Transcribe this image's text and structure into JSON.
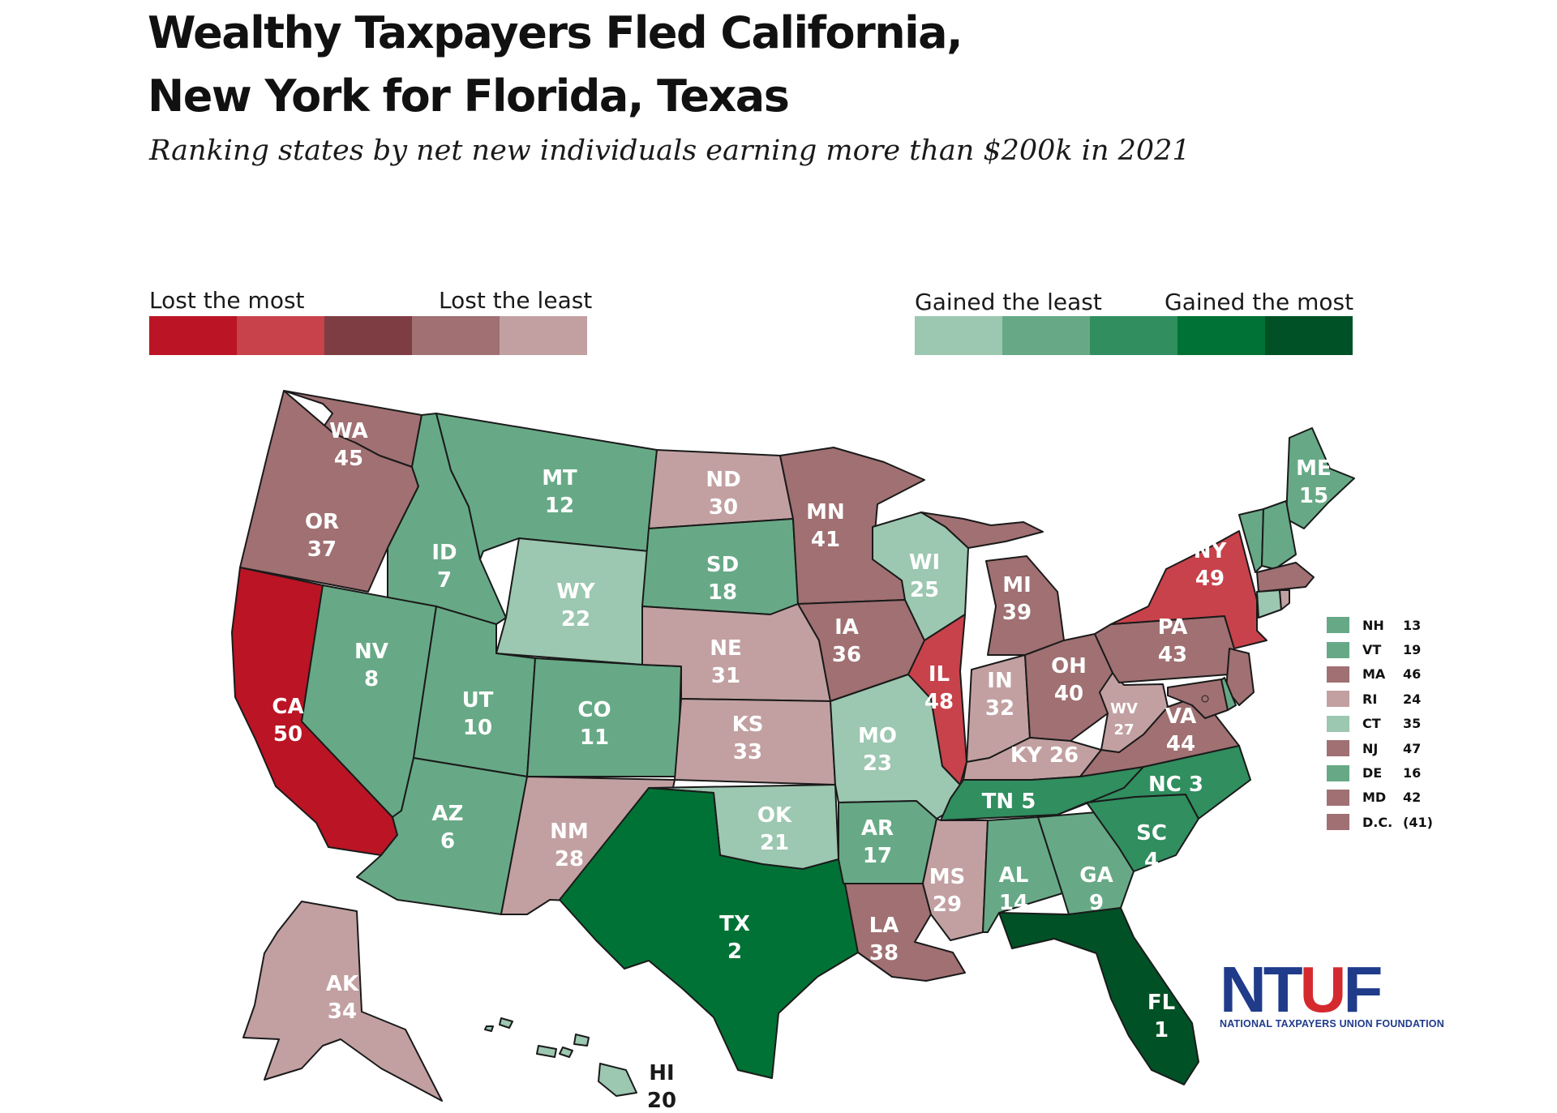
{
  "title_line1": "Wealthy Taxpayers Fled California,",
  "title_line2": "New York for Florida, Texas",
  "subtitle": "Ranking states by net new individuals earning more than $200k in 2021",
  "legend": {
    "lost_most": "Lost the most",
    "lost_least": "Lost the least",
    "gained_least": "Gained the least",
    "gained_most": "Gained the most",
    "lost_colors": [
      "#bb1424",
      "#c8424b",
      "#7e3d42",
      "#a07072",
      "#c2a0a1"
    ],
    "gained_colors": [
      "#9cc7b0",
      "#67a986",
      "#308e5f",
      "#017235",
      "#005126"
    ]
  },
  "states": [
    {
      "abbr": "WA",
      "rank": "45",
      "color": "#a07072"
    },
    {
      "abbr": "OR",
      "rank": "37",
      "color": "#a07072"
    },
    {
      "abbr": "CA",
      "rank": "50",
      "color": "#bb1424"
    },
    {
      "abbr": "ID",
      "rank": "7",
      "color": "#67a986"
    },
    {
      "abbr": "NV",
      "rank": "8",
      "color": "#67a986"
    },
    {
      "abbr": "MT",
      "rank": "12",
      "color": "#67a986"
    },
    {
      "abbr": "WY",
      "rank": "22",
      "color": "#9cc7b0"
    },
    {
      "abbr": "UT",
      "rank": "10",
      "color": "#67a986"
    },
    {
      "abbr": "CO",
      "rank": "11",
      "color": "#67a986"
    },
    {
      "abbr": "AZ",
      "rank": "6",
      "color": "#67a986"
    },
    {
      "abbr": "NM",
      "rank": "28",
      "color": "#c2a0a1"
    },
    {
      "abbr": "ND",
      "rank": "30",
      "color": "#c2a0a1"
    },
    {
      "abbr": "SD",
      "rank": "18",
      "color": "#67a986"
    },
    {
      "abbr": "NE",
      "rank": "31",
      "color": "#c2a0a1"
    },
    {
      "abbr": "KS",
      "rank": "33",
      "color": "#c2a0a1"
    },
    {
      "abbr": "OK",
      "rank": "21",
      "color": "#9cc7b0"
    },
    {
      "abbr": "TX",
      "rank": "2",
      "color": "#017235"
    },
    {
      "abbr": "MN",
      "rank": "41",
      "color": "#a07072"
    },
    {
      "abbr": "IA",
      "rank": "36",
      "color": "#a07072"
    },
    {
      "abbr": "MO",
      "rank": "23",
      "color": "#9cc7b0"
    },
    {
      "abbr": "AR",
      "rank": "17",
      "color": "#67a986"
    },
    {
      "abbr": "LA",
      "rank": "38",
      "color": "#a07072"
    },
    {
      "abbr": "WI",
      "rank": "25",
      "color": "#9cc7b0"
    },
    {
      "abbr": "IL",
      "rank": "48",
      "color": "#c8424b"
    },
    {
      "abbr": "MI",
      "rank": "39",
      "color": "#a07072"
    },
    {
      "abbr": "IN",
      "rank": "32",
      "color": "#c2a0a1"
    },
    {
      "abbr": "OH",
      "rank": "40",
      "color": "#a07072"
    },
    {
      "abbr": "KY",
      "rank": "26",
      "color": "#c2a0a1"
    },
    {
      "abbr": "TN",
      "rank": "5",
      "color": "#308e5f"
    },
    {
      "abbr": "MS",
      "rank": "29",
      "color": "#c2a0a1"
    },
    {
      "abbr": "AL",
      "rank": "14",
      "color": "#67a986"
    },
    {
      "abbr": "GA",
      "rank": "9",
      "color": "#67a986"
    },
    {
      "abbr": "FL",
      "rank": "1",
      "color": "#005126"
    },
    {
      "abbr": "SC",
      "rank": "4",
      "color": "#308e5f"
    },
    {
      "abbr": "NC",
      "rank": "3",
      "color": "#308e5f"
    },
    {
      "abbr": "VA",
      "rank": "44",
      "color": "#a07072"
    },
    {
      "abbr": "WV",
      "rank": "27",
      "color": "#c2a0a1"
    },
    {
      "abbr": "PA",
      "rank": "43",
      "color": "#a07072"
    },
    {
      "abbr": "NY",
      "rank": "49",
      "color": "#c8424b"
    },
    {
      "abbr": "ME",
      "rank": "15",
      "color": "#67a986"
    },
    {
      "abbr": "AK",
      "rank": "34",
      "color": "#c2a0a1"
    },
    {
      "abbr": "HI",
      "rank": "20",
      "color": "#9cc7b0"
    }
  ],
  "northeast": [
    {
      "abbr": "NH",
      "rank": "13",
      "color": "#67a986"
    },
    {
      "abbr": "VT",
      "rank": "19",
      "color": "#67a986"
    },
    {
      "abbr": "MA",
      "rank": "46",
      "color": "#a07072"
    },
    {
      "abbr": "RI",
      "rank": "24",
      "color": "#c2a0a1"
    },
    {
      "abbr": "CT",
      "rank": "35",
      "color": "#9cc7b0"
    },
    {
      "abbr": "NJ",
      "rank": "47",
      "color": "#a07072"
    },
    {
      "abbr": "DE",
      "rank": "16",
      "color": "#67a986"
    },
    {
      "abbr": "MD",
      "rank": "42",
      "color": "#a07072"
    },
    {
      "abbr": "D.C.",
      "rank": "(41)",
      "color": "#a07072"
    }
  ],
  "logo": {
    "text": "NTUF",
    "subtext": "NATIONAL TAXPAYERS UNION FOUNDATION",
    "blue": "#1f3b8a",
    "red": "#d42a2e"
  }
}
